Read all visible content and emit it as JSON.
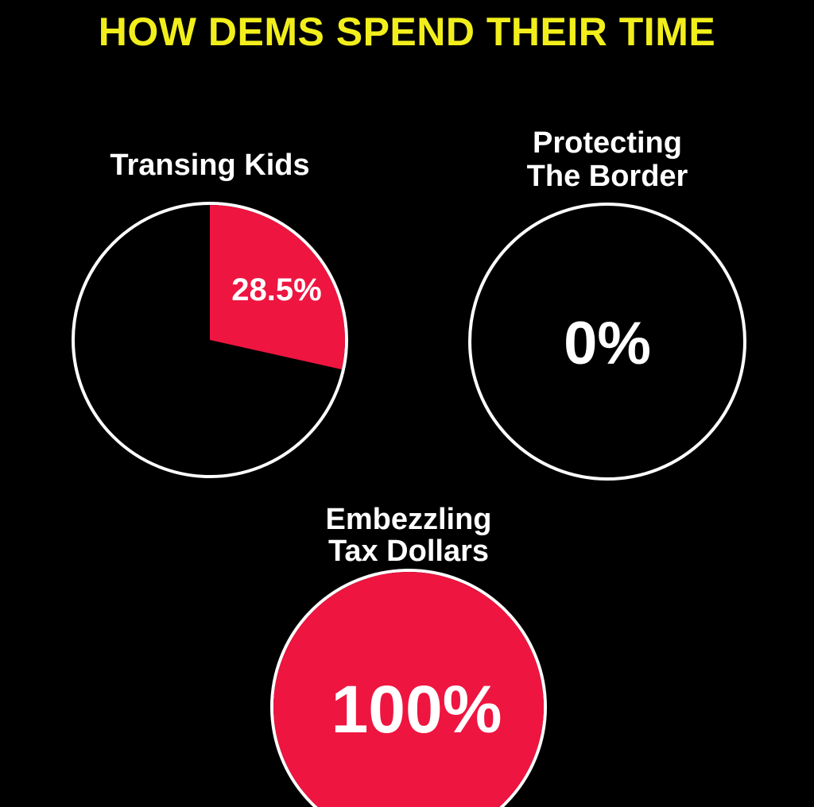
{
  "title": "HOW DEMS SPEND THEIR TIME",
  "colors": {
    "background": "#000000",
    "title": "#f2ee1c",
    "slice": "#ee1540",
    "outline": "#ffffff",
    "text": "#ffffff"
  },
  "chart_data": [
    {
      "type": "pie",
      "title_lines": [
        "Transing Kids"
      ],
      "value_percent": 28.5,
      "label": "28.5%"
    },
    {
      "type": "pie",
      "title_lines": [
        "Protecting",
        "The Border"
      ],
      "value_percent": 0,
      "label": "0%"
    },
    {
      "type": "pie",
      "title_lines": [
        "Embezzling",
        "Tax Dollars"
      ],
      "value_percent": 100,
      "label": "100%"
    }
  ]
}
